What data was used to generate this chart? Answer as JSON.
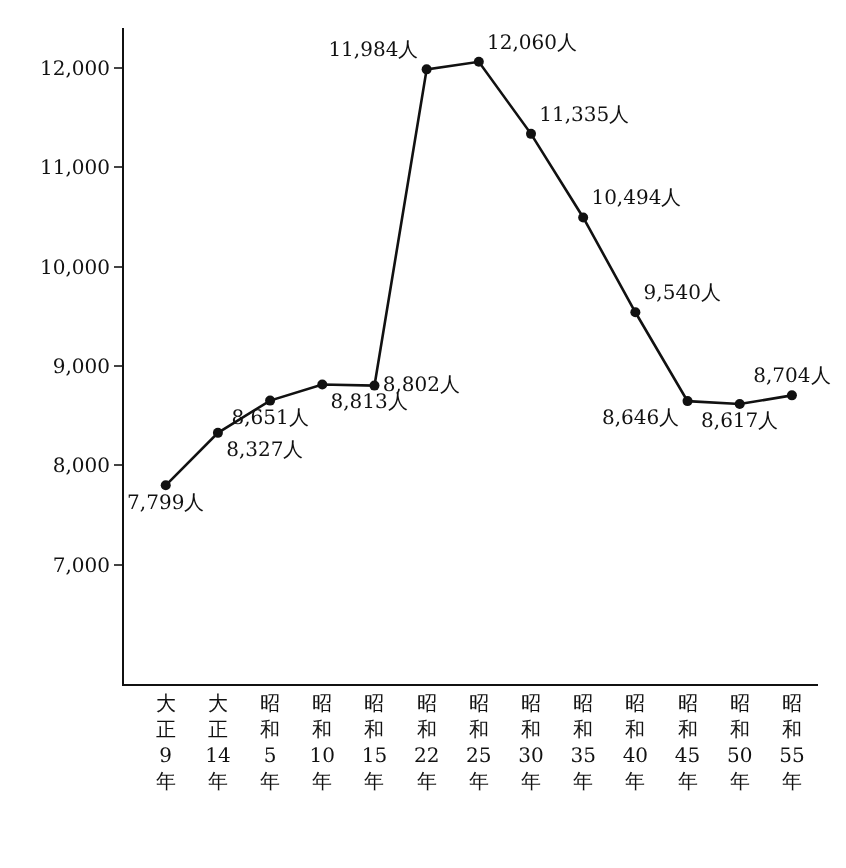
{
  "chart_data": {
    "type": "line",
    "categories": [
      "大正9年",
      "大正14年",
      "昭和5年",
      "昭和10年",
      "昭和15年",
      "昭和22年",
      "昭和25年",
      "昭和30年",
      "昭和35年",
      "昭和40年",
      "昭和45年",
      "昭和50年",
      "昭和55年"
    ],
    "series": [
      {
        "color": "#111111",
        "values": [
          7799,
          8327,
          8651,
          8813,
          8802,
          11984,
          12060,
          11335,
          10494,
          9540,
          8646,
          8617,
          8704
        ],
        "value_labels": [
          "7,799人",
          "8,327人",
          "8,651人",
          "8,813人",
          "8,802人",
          "11,984人",
          "12,060人",
          "11,335人",
          "10,494人",
          "9,540人",
          "8,646人",
          "8,617人",
          "8,704人"
        ]
      }
    ],
    "ylim": [
      5800,
      12400
    ],
    "yticks": [
      {
        "value": 7000,
        "label": "7,000"
      },
      {
        "value": 8000,
        "label": "8,000"
      },
      {
        "value": 9000,
        "label": "9,000"
      },
      {
        "value": 10000,
        "label": "10,000"
      },
      {
        "value": 11000,
        "label": "11,000"
      },
      {
        "value": 12000,
        "label": "12,000"
      }
    ],
    "marker": "circle",
    "line_style": "solid"
  }
}
